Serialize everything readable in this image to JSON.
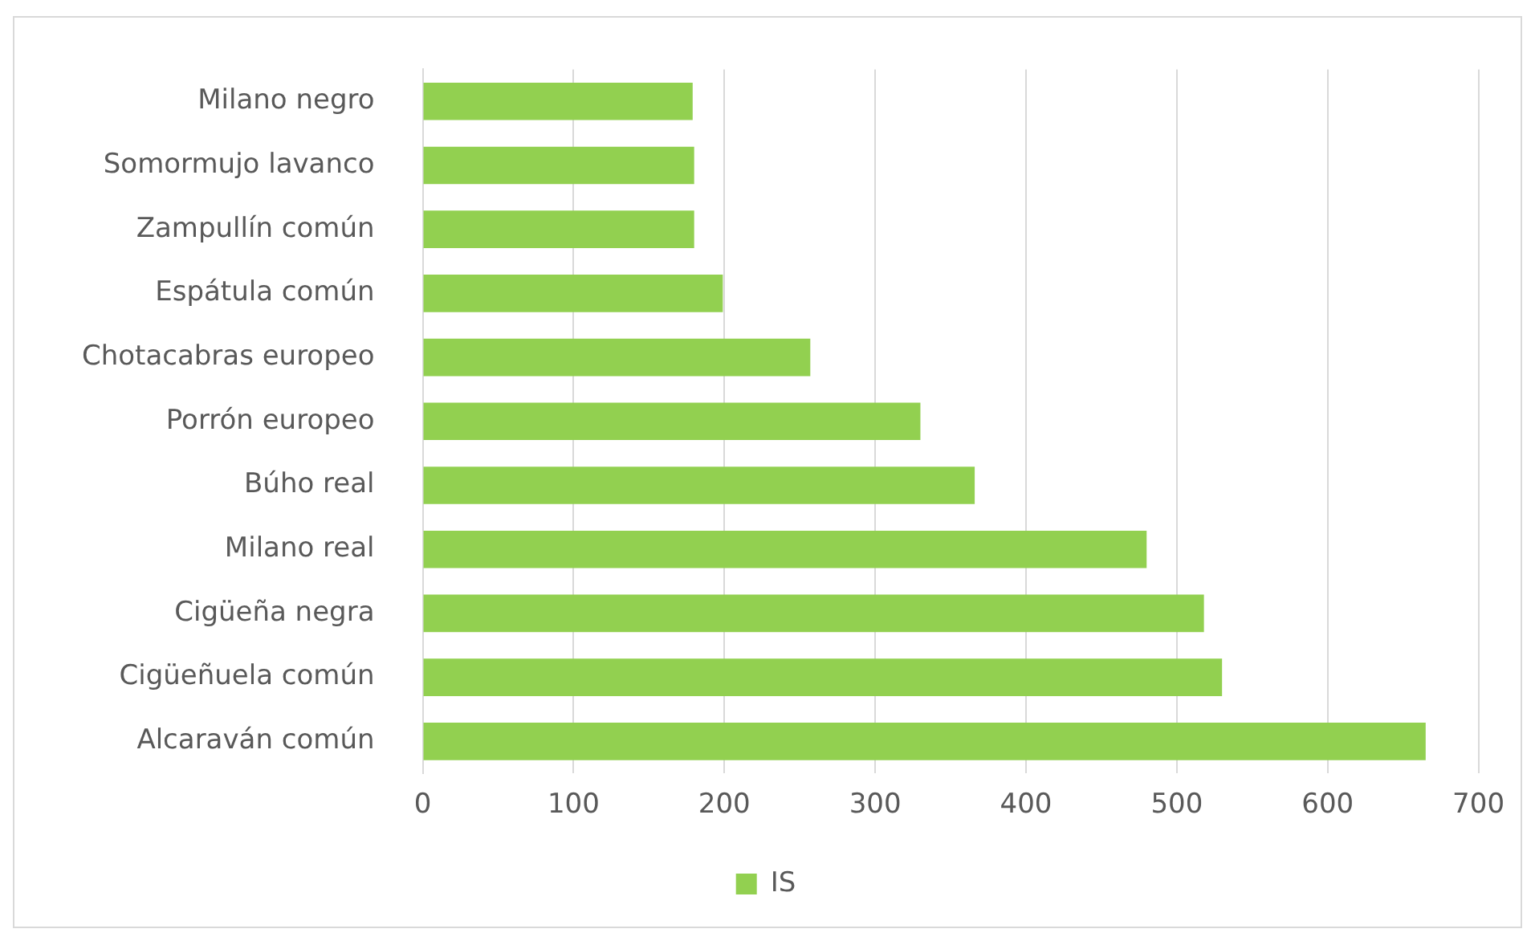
{
  "chart_data": {
    "type": "bar",
    "orientation": "horizontal",
    "categories": [
      "Milano negro",
      "Somormujo lavanco",
      "Zampullín común",
      "Espátula común",
      "Chotacabras europeo",
      "Porrón europeo",
      "Búho real",
      "Milano real",
      "Cigüeña negra",
      "Cigüeñuela común",
      "Alcaraván común"
    ],
    "series": [
      {
        "name": "IS",
        "color": "#92d050",
        "values": [
          179,
          180,
          180,
          199,
          257,
          330,
          366,
          480,
          518,
          530,
          665
        ]
      }
    ],
    "xlim": [
      0,
      700
    ],
    "xticks": [
      0,
      100,
      200,
      300,
      400,
      500,
      600,
      700
    ],
    "grid": "x",
    "legend": "bottom"
  }
}
